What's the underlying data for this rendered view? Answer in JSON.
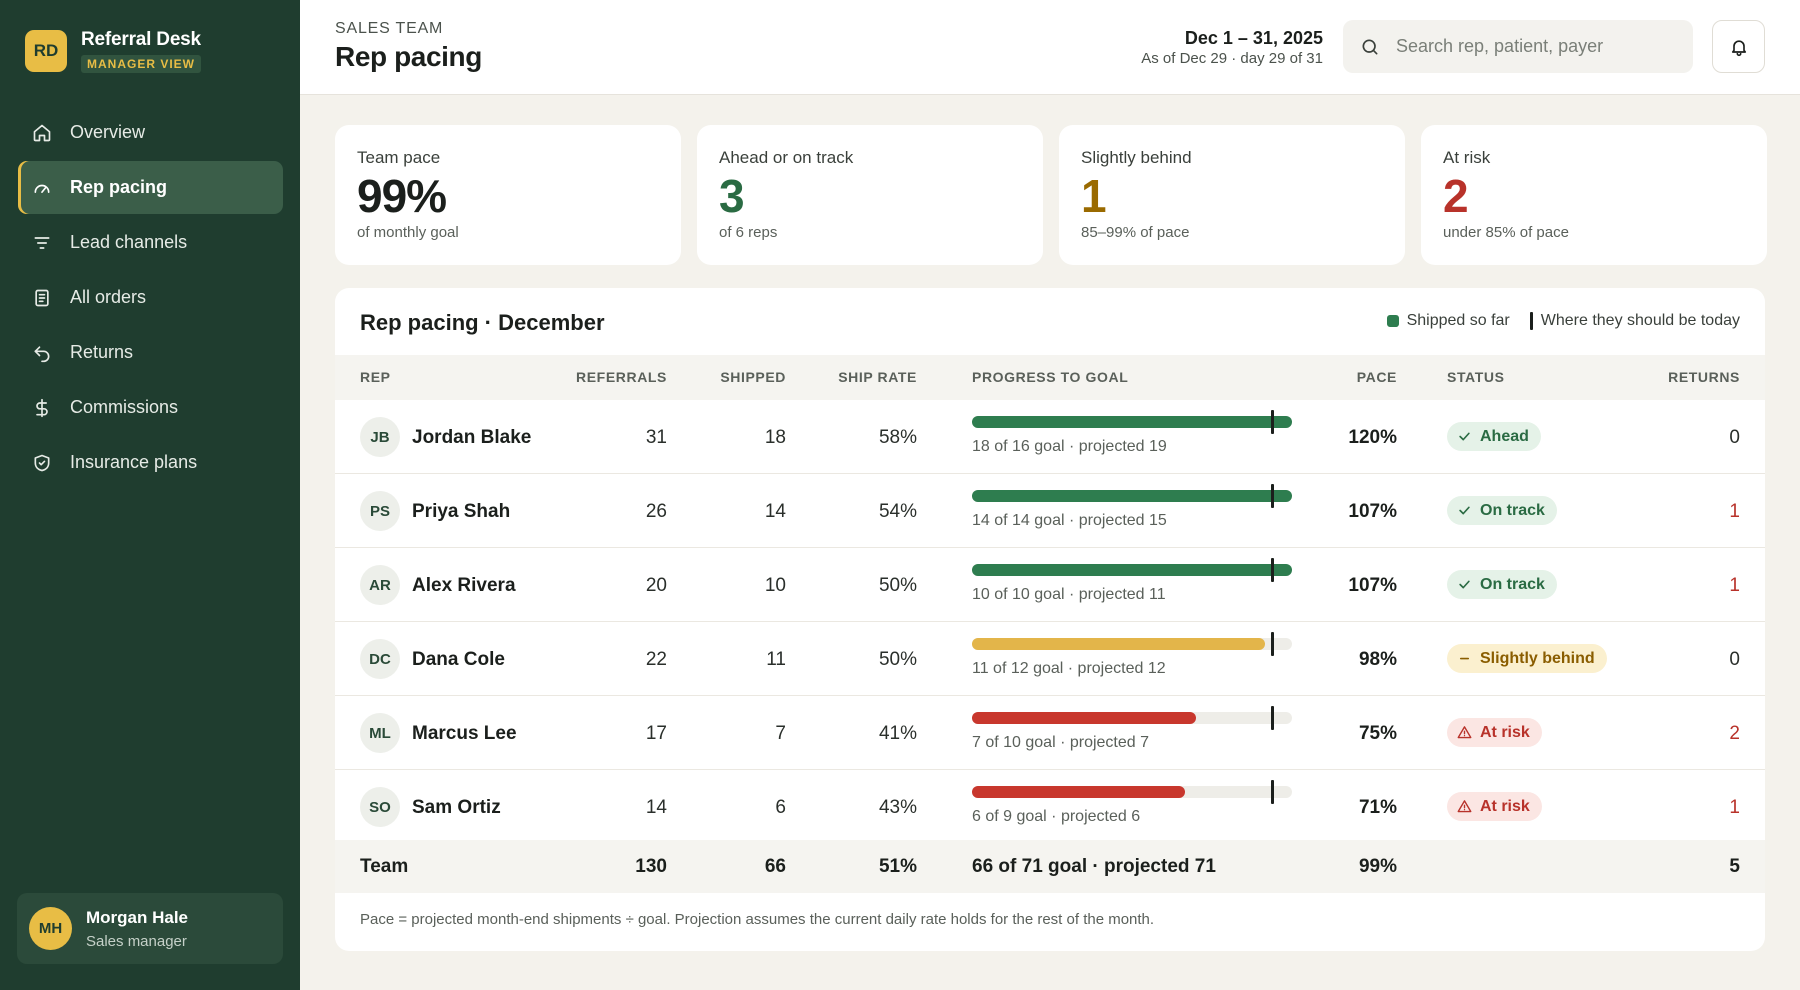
{
  "app": {
    "logo_initials": "RD",
    "name": "Referral Desk",
    "badge": "MANAGER VIEW"
  },
  "nav": [
    {
      "label": "Overview",
      "icon": "home-icon",
      "active": false
    },
    {
      "label": "Rep pacing",
      "icon": "gauge-icon",
      "active": true
    },
    {
      "label": "Lead channels",
      "icon": "filter-icon",
      "active": false
    },
    {
      "label": "All orders",
      "icon": "document-icon",
      "active": false
    },
    {
      "label": "Returns",
      "icon": "return-arrow-icon",
      "active": false
    },
    {
      "label": "Commissions",
      "icon": "dollar-icon",
      "active": false
    },
    {
      "label": "Insurance plans",
      "icon": "shield-check-icon",
      "active": false
    }
  ],
  "user": {
    "initials": "MH",
    "name": "Morgan Hale",
    "role": "Sales manager"
  },
  "header": {
    "eyebrow": "SALES TEAM",
    "title": "Rep pacing",
    "date_range": "Dec 1 – 31, 2025",
    "as_of": "As of Dec 29 · day 29 of 31",
    "search_placeholder": "Search rep, patient, payer",
    "search_icon": "search-icon",
    "bell_icon": "bell-icon"
  },
  "stats": [
    {
      "label": "Team pace",
      "value": "99%",
      "sub": "of monthly goal",
      "color": "#1b1f1c"
    },
    {
      "label": "Ahead or on track",
      "value": "3",
      "sub": "of 6 reps",
      "color": "#2a6b43"
    },
    {
      "label": "Slightly behind",
      "value": "1",
      "sub": "85–99% of pace",
      "color": "#9a6a00"
    },
    {
      "label": "At risk",
      "value": "2",
      "sub": "under 85% of pace",
      "color": "#b8322a"
    }
  ],
  "table": {
    "title": "Rep pacing · December",
    "legend": {
      "shipped": "Shipped so far",
      "target": "Where they should be today"
    },
    "columns": {
      "rep": "REP",
      "referrals": "REFERRALS",
      "shipped": "SHIPPED",
      "ship_rate": "SHIP RATE",
      "progress": "PROGRESS TO GOAL",
      "pace": "PACE",
      "status": "STATUS",
      "returns": "RETURNS"
    },
    "target_fraction": 0.935,
    "rows": [
      {
        "initials": "JB",
        "name": "Jordan Blake",
        "referrals": "31",
        "shipped": "18",
        "ship_rate": "58%",
        "progress": 1.0,
        "caption": "18 of 16 goal · projected 19",
        "pace": "120%",
        "status": "Ahead",
        "status_type": "ahead",
        "returns": "0"
      },
      {
        "initials": "PS",
        "name": "Priya Shah",
        "referrals": "26",
        "shipped": "14",
        "ship_rate": "54%",
        "progress": 1.0,
        "caption": "14 of 14 goal · projected 15",
        "pace": "107%",
        "status": "On track",
        "status_type": "ahead",
        "returns": "1"
      },
      {
        "initials": "AR",
        "name": "Alex Rivera",
        "referrals": "20",
        "shipped": "10",
        "ship_rate": "50%",
        "progress": 1.0,
        "caption": "10 of 10 goal · projected 11",
        "pace": "107%",
        "status": "On track",
        "status_type": "ahead",
        "returns": "1"
      },
      {
        "initials": "DC",
        "name": "Dana Cole",
        "referrals": "22",
        "shipped": "11",
        "ship_rate": "50%",
        "progress": 0.917,
        "caption": "11 of 12 goal · projected 12",
        "pace": "98%",
        "status": "Slightly behind",
        "status_type": "behind",
        "returns": "0"
      },
      {
        "initials": "ML",
        "name": "Marcus Lee",
        "referrals": "17",
        "shipped": "7",
        "ship_rate": "41%",
        "progress": 0.7,
        "caption": "7 of 10 goal · projected 7",
        "pace": "75%",
        "status": "At risk",
        "status_type": "risk",
        "returns": "2"
      },
      {
        "initials": "SO",
        "name": "Sam Ortiz",
        "referrals": "14",
        "shipped": "6",
        "ship_rate": "43%",
        "progress": 0.667,
        "caption": "6 of 9 goal · projected 6",
        "pace": "71%",
        "status": "At risk",
        "status_type": "risk",
        "returns": "1"
      }
    ],
    "team": {
      "label": "Team",
      "referrals": "130",
      "shipped": "66",
      "ship_rate": "51%",
      "progress": "66 of 71 goal · projected 71",
      "pace": "99%",
      "returns": "5"
    },
    "footnote": "Pace = projected month-end shipments ÷ goal. Projection assumes the current daily rate holds for the rest of the month."
  },
  "colors": {
    "bar_ahead": "#2e7d4f",
    "bar_behind": "#e3b54a",
    "bar_risk": "#c8372d",
    "returns_nonzero": "#b8322a"
  }
}
